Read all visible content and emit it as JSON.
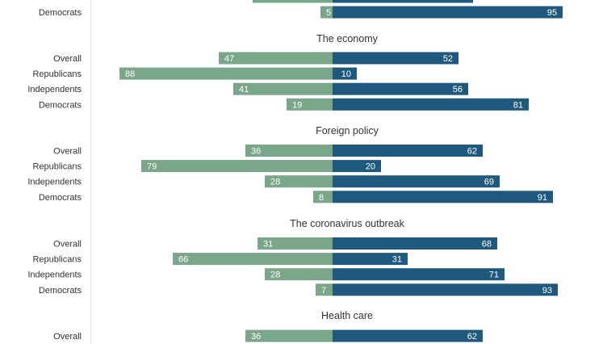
{
  "chart_data": {
    "type": "bar",
    "orientation": "horizontal-diverging",
    "colors": {
      "left": "#7aa68a",
      "right": "#1f5a7e",
      "axis": "#e6e6e6"
    },
    "groups": [
      {
        "title": "",
        "rows": [
          {
            "label": "",
            "left": 33,
            "right": 58
          },
          {
            "label": "Democrats",
            "left": 5,
            "right": 95
          }
        ]
      },
      {
        "title": "The economy",
        "rows": [
          {
            "label": "Overall",
            "left": 47,
            "right": 52
          },
          {
            "label": "Republicans",
            "left": 88,
            "right": 10
          },
          {
            "label": "Independents",
            "left": 41,
            "right": 56
          },
          {
            "label": "Democrats",
            "left": 19,
            "right": 81
          }
        ]
      },
      {
        "title": "Foreign policy",
        "rows": [
          {
            "label": "Overall",
            "left": 36,
            "right": 62
          },
          {
            "label": "Republicans",
            "left": 79,
            "right": 20
          },
          {
            "label": "Independents",
            "left": 28,
            "right": 69
          },
          {
            "label": "Democrats",
            "left": 8,
            "right": 91
          }
        ]
      },
      {
        "title": "The coronavirus outbreak",
        "rows": [
          {
            "label": "Overall",
            "left": 31,
            "right": 68
          },
          {
            "label": "Republicans",
            "left": 66,
            "right": 31
          },
          {
            "label": "Independents",
            "left": 28,
            "right": 71
          },
          {
            "label": "Democrats",
            "left": 7,
            "right": 93
          }
        ]
      },
      {
        "title": "Health care",
        "rows": [
          {
            "label": "Overall",
            "left": 36,
            "right": 62
          }
        ]
      }
    ]
  }
}
